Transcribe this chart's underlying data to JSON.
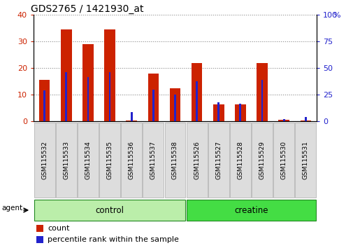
{
  "title": "GDS2765 / 1421930_at",
  "samples": [
    "GSM115532",
    "GSM115533",
    "GSM115534",
    "GSM115535",
    "GSM115536",
    "GSM115537",
    "GSM115538",
    "GSM115526",
    "GSM115527",
    "GSM115528",
    "GSM115529",
    "GSM115530",
    "GSM115531"
  ],
  "counts": [
    15.5,
    34.5,
    29.0,
    34.5,
    0.5,
    18.0,
    12.5,
    22.0,
    6.5,
    6.5,
    22.0,
    0.7,
    0.5
  ],
  "percentile_ranks": [
    29,
    46,
    42,
    46,
    9,
    30,
    25,
    38,
    18,
    17,
    39,
    2,
    4
  ],
  "groups": [
    {
      "name": "control",
      "start": 0,
      "end": 7,
      "color": "#bbeeaa"
    },
    {
      "name": "creatine",
      "start": 7,
      "end": 13,
      "color": "#44dd44"
    }
  ],
  "bar_color": "#cc2200",
  "percentile_color": "#2222cc",
  "ylim_left": [
    0,
    40
  ],
  "ylim_right": [
    0,
    100
  ],
  "yticks_left": [
    0,
    10,
    20,
    30,
    40
  ],
  "yticks_right": [
    0,
    25,
    50,
    75,
    100
  ],
  "left_tick_color": "#cc2200",
  "right_tick_color": "#2222cc",
  "background_color": "#ffffff",
  "agent_label": "agent",
  "legend_count": "count",
  "legend_percentile": "percentile rank within the sample",
  "bar_width": 0.5
}
